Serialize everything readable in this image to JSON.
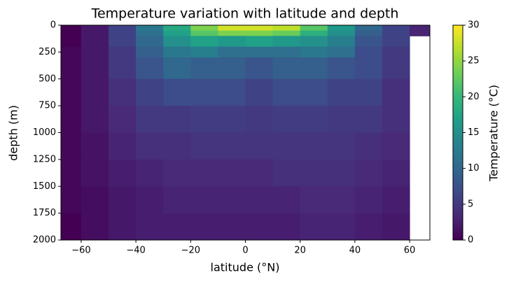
{
  "chart_data": {
    "type": "heatmap",
    "title": "Temperature variation with latitude and depth",
    "xlabel": "latitude (°N)",
    "ylabel": "depth (m)",
    "colorbar_label": "Temperature (°C)",
    "colormap": "viridis",
    "x_edges": [
      -67.4,
      -60,
      -50,
      -40,
      -30,
      -20,
      -10,
      0,
      10,
      20,
      30,
      40,
      50,
      60,
      67.4
    ],
    "y_edges": [
      0,
      50,
      100,
      200,
      300,
      500,
      750,
      1000,
      1250,
      1500,
      1750,
      2000
    ],
    "values": [
      [
        -1,
        2,
        6,
        12,
        18,
        24,
        28,
        28,
        27,
        22,
        16,
        10,
        6,
        3
      ],
      [
        -0.5,
        2,
        6,
        11,
        17,
        22,
        24,
        24,
        23,
        19,
        15,
        9,
        6,
        3
      ],
      [
        0,
        2,
        6,
        10,
        15,
        17,
        16,
        17,
        16,
        15,
        13,
        8,
        6,
        null
      ],
      [
        0.5,
        2,
        5,
        9,
        12,
        13,
        11,
        11,
        11,
        12,
        11,
        7,
        5,
        null
      ],
      [
        0.5,
        2,
        5,
        8,
        10,
        9,
        9,
        8,
        9,
        9,
        8,
        7,
        5,
        null
      ],
      [
        0.5,
        2,
        4,
        6,
        7,
        7,
        7,
        6,
        7,
        7,
        6,
        6,
        4,
        null
      ],
      [
        0.5,
        2,
        3.5,
        5,
        5,
        5.5,
        5.5,
        5,
        5.5,
        5.5,
        5,
        5,
        4,
        null
      ],
      [
        0.5,
        1.5,
        3,
        4,
        4,
        4.5,
        4.5,
        4.5,
        4.5,
        4.5,
        4.5,
        4,
        3.5,
        null
      ],
      [
        0.5,
        1.5,
        2.5,
        3,
        3.5,
        3.5,
        3.5,
        3.5,
        4,
        4,
        4,
        3.5,
        3,
        null
      ],
      [
        0.5,
        1,
        2,
        2.5,
        3,
        3,
        3,
        3,
        3,
        3.5,
        3.5,
        3,
        2.5,
        null
      ],
      [
        0,
        1,
        2,
        2.5,
        2.5,
        2.5,
        2.5,
        2.5,
        2.5,
        3,
        3,
        2.5,
        2,
        null
      ]
    ],
    "xlim": [
      -67.4,
      67.4
    ],
    "ylim": [
      2000,
      0
    ],
    "clim": [
      0,
      30
    ],
    "xticks": [
      {
        "value": -60,
        "label": "−60"
      },
      {
        "value": -40,
        "label": "−40"
      },
      {
        "value": -20,
        "label": "−20"
      },
      0,
      20,
      40,
      60
    ],
    "yticks": [
      0,
      250,
      500,
      750,
      1000,
      1250,
      1500,
      1750,
      2000
    ],
    "cticks": [
      0,
      5,
      10,
      15,
      20,
      25,
      30
    ]
  }
}
